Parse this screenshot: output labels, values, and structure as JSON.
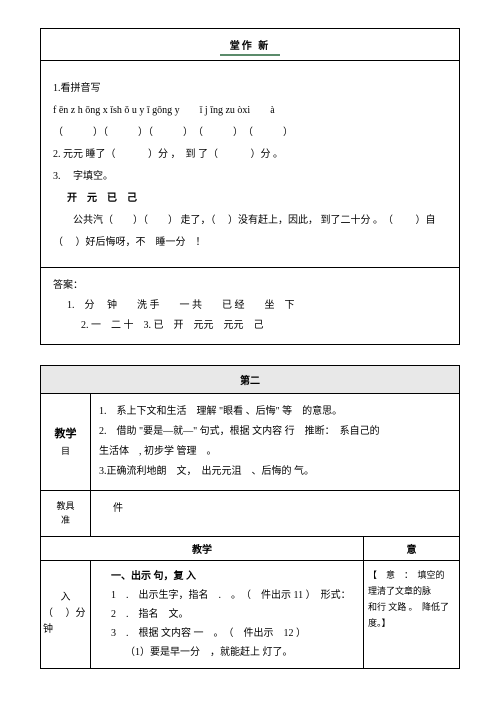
{
  "box1": {
    "title": "堂作 新",
    "underline_color": "#5b8b6b",
    "q1_label": "1.看拼音写",
    "q1_pinyin": "f ēn z h ōng x ǐsh ǒ u y ī gōng y　　ǐ j īng zu òxi　　à",
    "q1_blanks": "（　　　）（　　　）（　　　）　（　　　）　（　　　）",
    "q2": "2. 元元 睡了（　　　 ）分 ，　到 了（　　　 ）分 。",
    "q3_label": "3.　 字填空。",
    "q3_chars": "开　元　已　己",
    "q3_text1": "　　公共汽（　　）（　　） 走了，（　 ）没有赶上，因此， 到了二十分 。　（　　 ）自",
    "q3_text2": "（　 ）好后悔呀，不　睡一分　！",
    "ans_label": "答案：",
    "ans1": "1.　分　 钟　　洗 手　　一 共　　已 经　　坐　下",
    "ans2": "2. 一　二 十　3. 已　开　元元　元元　己"
  },
  "box2": {
    "header": "第二",
    "teach_label_main": "教学",
    "teach_label_sub": "目",
    "teach_line1": "1.　系上下文和生活　理解 \"眼看 、后悔\" 等　的意思。",
    "teach_line2": "2.　借助 \"要是—就—\" 句式，根据 文内容 行　推断：　系自己的",
    "teach_line3": "生活体　, 初步学 管理　。",
    "teach_line4": "3.正确流利地朗　文，　出元元沮　、后悔的 气。",
    "tool_label_main": "教具",
    "tool_label_sub": "准",
    "tool_content": "件",
    "sub_left": "教学",
    "sub_right": "意",
    "step_label_main": "入",
    "step_label_sub": "（　 ）分钟",
    "step_line1": "一、出示 句，复 入",
    "step_line2": "1　.　出示生字，指名　.　。　（　件出示 11 ）　形式：",
    "step_line3": "2　.　指名　文。",
    "step_line4": "3　.　根据 文内容 一　。　（　件出示　12 ）",
    "step_line5": "（1）要是早一分　，就能赶上 灯了。",
    "note_line1": "【　意　：　填空的",
    "note_line2": "理清了文章的脉",
    "note_line3": "和行 文路 。　降低了",
    "note_line4": "度。】"
  }
}
